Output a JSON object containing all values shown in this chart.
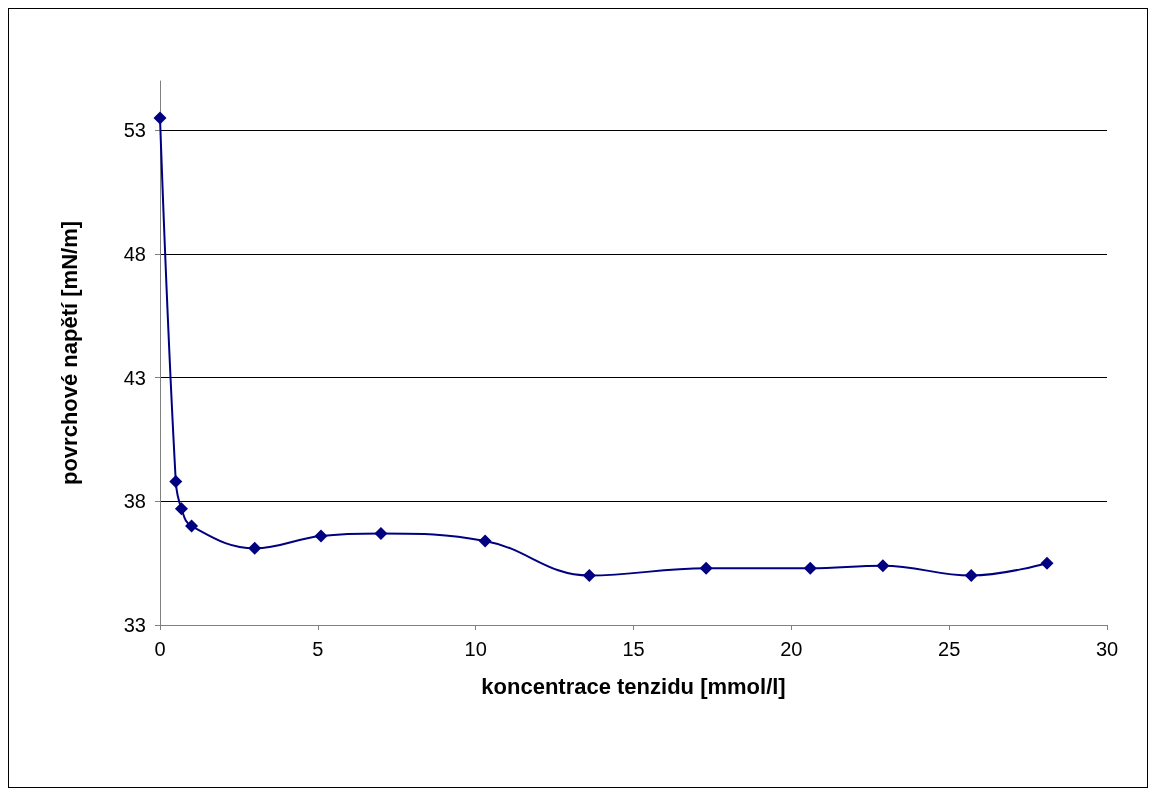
{
  "chart_data": {
    "type": "line",
    "xlabel": "koncentrace tenzidu [mmol/l]",
    "ylabel": "povrchové napětí [mN/m]",
    "x": [
      0,
      0.5,
      0.68,
      1.0,
      3.0,
      5.1,
      7.0,
      10.3,
      13.6,
      17.3,
      20.6,
      22.9,
      25.7,
      28.1
    ],
    "series": [
      {
        "color": "#000080",
        "values": [
          53.5,
          38.8,
          37.7,
          37.0,
          36.1,
          36.6,
          36.7,
          36.4,
          35.0,
          35.3,
          35.3,
          35.4,
          35.0,
          35.5
        ]
      }
    ],
    "xlim": [
      0,
      30
    ],
    "xticks": [
      0,
      5,
      10,
      15,
      20,
      25,
      30
    ],
    "ylim": [
      33,
      55
    ],
    "yticks": [
      33,
      38,
      43,
      48,
      53
    ],
    "grid": "y",
    "marker": "diamond",
    "line_style": "solid"
  }
}
